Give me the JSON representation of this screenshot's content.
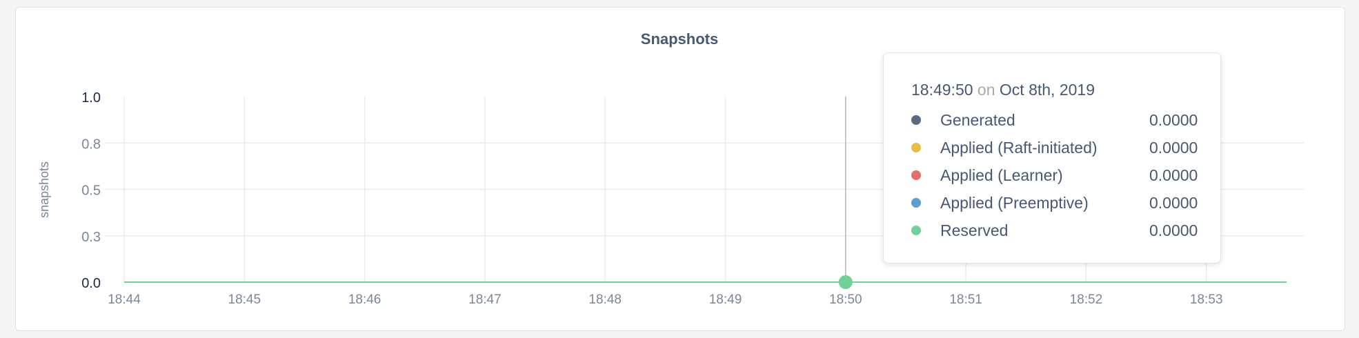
{
  "chart_data": {
    "type": "line",
    "title": "Snapshots",
    "ylabel": "snapshots",
    "xlabel": "",
    "ylim": [
      0,
      1
    ],
    "y_ticks": [
      0,
      0.25,
      0.5,
      0.75,
      1.0
    ],
    "y_tick_labels": [
      "0.0",
      "0.3",
      "0.5",
      "0.8",
      "1.0"
    ],
    "x_tick_labels": [
      "18:44",
      "18:45",
      "18:46",
      "18:47",
      "18:48",
      "18:49",
      "18:50",
      "18:51",
      "18:52",
      "18:53"
    ],
    "x_range": [
      "18:44",
      "18:53:48"
    ],
    "grid": true,
    "series": [
      {
        "name": "Generated",
        "color": "#5b6a85",
        "values": [
          0,
          0,
          0,
          0,
          0,
          0,
          0,
          0,
          0,
          0
        ]
      },
      {
        "name": "Applied (Raft-initiated)",
        "color": "#eabd4a",
        "values": [
          0,
          0,
          0,
          0,
          0,
          0,
          0,
          0,
          0,
          0
        ]
      },
      {
        "name": "Applied (Learner)",
        "color": "#e56f6b",
        "values": [
          0,
          0,
          0,
          0,
          0,
          0,
          0,
          0,
          0,
          0
        ]
      },
      {
        "name": "Applied (Preemptive)",
        "color": "#5a9fd4",
        "values": [
          0,
          0,
          0,
          0,
          0,
          0,
          0,
          0,
          0,
          0
        ]
      },
      {
        "name": "Reserved",
        "color": "#6fd196",
        "values": [
          0,
          0,
          0,
          0,
          0,
          0,
          0,
          0,
          0,
          0
        ]
      }
    ],
    "hover": {
      "x_label": "18:50"
    }
  },
  "tooltip": {
    "time": "18:49:50",
    "on": "on",
    "date": "Oct 8th, 2019",
    "rows": [
      {
        "name": "Generated",
        "value": "0.0000"
      },
      {
        "name": "Applied (Raft-initiated)",
        "value": "0.0000"
      },
      {
        "name": "Applied (Learner)",
        "value": "0.0000"
      },
      {
        "name": "Applied (Preemptive)",
        "value": "0.0000"
      },
      {
        "name": "Reserved",
        "value": "0.0000"
      }
    ]
  }
}
